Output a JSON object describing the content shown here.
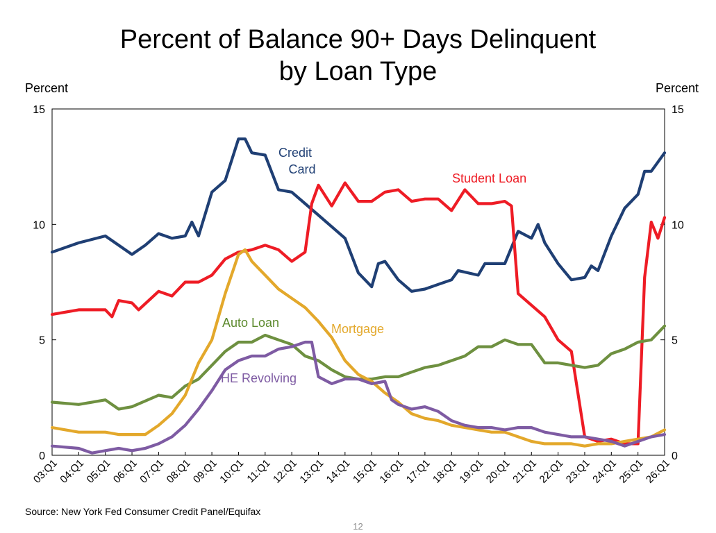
{
  "page": {
    "source": "Source: New York Fed Consumer Credit Panel/Equifax",
    "page_number": "12"
  },
  "chart_data": {
    "type": "line",
    "title_line1": "Percent of Balance 90+ Days Delinquent",
    "title_line2": "by Loan Type",
    "ylabel_left": "Percent",
    "ylabel_right": "Percent",
    "ylim": [
      0,
      15
    ],
    "yticks": [
      "0",
      "5",
      "10",
      "15"
    ],
    "xlim": [
      "03:Q1",
      "26:Q1"
    ],
    "xtick_labels": [
      "03:Q1",
      "04:Q1",
      "05:Q1",
      "06:Q1",
      "07:Q1",
      "08:Q1",
      "09:Q1",
      "10:Q1",
      "11:Q1",
      "12:Q1",
      "13:Q1",
      "14:Q1",
      "15:Q1",
      "16:Q1",
      "17:Q1",
      "18:Q1",
      "19:Q1",
      "20:Q1",
      "21:Q1",
      "22:Q1",
      "23:Q1",
      "24:Q1",
      "25:Q1",
      "26:Q1"
    ],
    "grid": false,
    "series": [
      {
        "name": "Credit Card",
        "label_lines": [
          "Credit",
          "Card"
        ],
        "color": "#1f3f74",
        "label_color": "#1f3f74",
        "points": [
          [
            "03:Q1",
            8.8
          ],
          [
            "04:Q1",
            9.2
          ],
          [
            "05:Q1",
            9.5
          ],
          [
            "06:Q1",
            8.7
          ],
          [
            "06:Q3",
            9.1
          ],
          [
            "07:Q1",
            9.6
          ],
          [
            "07:Q3",
            9.4
          ],
          [
            "08:Q1",
            9.5
          ],
          [
            "08:Q2",
            10.1
          ],
          [
            "08:Q3",
            9.5
          ],
          [
            "09:Q1",
            11.4
          ],
          [
            "09:Q3",
            11.9
          ],
          [
            "10:Q1",
            13.7
          ],
          [
            "10:Q2",
            13.7
          ],
          [
            "10:Q3",
            13.1
          ],
          [
            "11:Q1",
            13.0
          ],
          [
            "11:Q3",
            11.5
          ],
          [
            "12:Q1",
            11.4
          ],
          [
            "12:Q3",
            10.9
          ],
          [
            "13:Q1",
            10.4
          ],
          [
            "13:Q3",
            9.9
          ],
          [
            "14:Q1",
            9.4
          ],
          [
            "14:Q3",
            7.9
          ],
          [
            "15:Q1",
            7.3
          ],
          [
            "15:Q2",
            8.3
          ],
          [
            "15:Q3",
            8.4
          ],
          [
            "16:Q1",
            7.6
          ],
          [
            "16:Q3",
            7.1
          ],
          [
            "17:Q1",
            7.2
          ],
          [
            "17:Q3",
            7.4
          ],
          [
            "18:Q1",
            7.6
          ],
          [
            "18:Q2",
            8.0
          ],
          [
            "19:Q1",
            7.8
          ],
          [
            "19:Q2",
            8.3
          ],
          [
            "20:Q1",
            8.3
          ],
          [
            "20:Q3",
            9.7
          ],
          [
            "21:Q1",
            9.4
          ],
          [
            "21:Q2",
            10.0
          ],
          [
            "21:Q3",
            9.2
          ],
          [
            "22:Q1",
            8.3
          ],
          [
            "22:Q3",
            7.6
          ],
          [
            "23:Q1",
            7.7
          ],
          [
            "23:Q2",
            8.2
          ],
          [
            "23:Q3",
            8.0
          ],
          [
            "24:Q1",
            9.5
          ],
          [
            "24:Q3",
            10.7
          ],
          [
            "25:Q1",
            11.3
          ],
          [
            "25:Q2",
            12.3
          ],
          [
            "25:Q3",
            12.3
          ],
          [
            "26:Q1",
            13.1
          ]
        ]
      },
      {
        "name": "Student Loan",
        "label_lines": [
          "Student Loan"
        ],
        "color": "#ee1c25",
        "label_color": "#ee1c25",
        "points": [
          [
            "03:Q1",
            6.1
          ],
          [
            "04:Q1",
            6.3
          ],
          [
            "05:Q1",
            6.3
          ],
          [
            "05:Q2",
            6.0
          ],
          [
            "05:Q3",
            6.7
          ],
          [
            "06:Q1",
            6.6
          ],
          [
            "06:Q2",
            6.3
          ],
          [
            "07:Q1",
            7.1
          ],
          [
            "07:Q3",
            6.9
          ],
          [
            "08:Q1",
            7.5
          ],
          [
            "08:Q3",
            7.5
          ],
          [
            "09:Q1",
            7.8
          ],
          [
            "09:Q3",
            8.5
          ],
          [
            "10:Q1",
            8.8
          ],
          [
            "10:Q3",
            8.9
          ],
          [
            "11:Q1",
            9.1
          ],
          [
            "11:Q3",
            8.9
          ],
          [
            "12:Q1",
            8.4
          ],
          [
            "12:Q3",
            8.8
          ],
          [
            "12:Q4",
            10.9
          ],
          [
            "13:Q1",
            11.7
          ],
          [
            "13:Q3",
            10.8
          ],
          [
            "14:Q1",
            11.8
          ],
          [
            "14:Q3",
            11.0
          ],
          [
            "15:Q1",
            11.0
          ],
          [
            "15:Q3",
            11.4
          ],
          [
            "16:Q1",
            11.5
          ],
          [
            "16:Q3",
            11.0
          ],
          [
            "17:Q1",
            11.1
          ],
          [
            "17:Q3",
            11.1
          ],
          [
            "18:Q1",
            10.6
          ],
          [
            "18:Q3",
            11.5
          ],
          [
            "19:Q1",
            10.9
          ],
          [
            "19:Q3",
            10.9
          ],
          [
            "20:Q1",
            11.0
          ],
          [
            "20:Q2",
            10.8
          ],
          [
            "20:Q3",
            7.0
          ],
          [
            "21:Q1",
            6.5
          ],
          [
            "21:Q3",
            6.0
          ],
          [
            "22:Q1",
            5.0
          ],
          [
            "22:Q3",
            4.5
          ],
          [
            "23:Q1",
            0.8
          ],
          [
            "23:Q3",
            0.6
          ],
          [
            "24:Q1",
            0.7
          ],
          [
            "24:Q3",
            0.5
          ],
          [
            "25:Q1",
            0.5
          ],
          [
            "25:Q2",
            7.7
          ],
          [
            "25:Q3",
            10.1
          ],
          [
            "25:Q4",
            9.4
          ],
          [
            "26:Q1",
            10.3
          ]
        ]
      },
      {
        "name": "Auto Loan",
        "label_lines": [
          "Auto Loan"
        ],
        "color": "#6e9040",
        "label_color": "#5d8a2e",
        "points": [
          [
            "03:Q1",
            2.3
          ],
          [
            "04:Q1",
            2.2
          ],
          [
            "05:Q1",
            2.4
          ],
          [
            "05:Q3",
            2.0
          ],
          [
            "06:Q1",
            2.1
          ],
          [
            "07:Q1",
            2.6
          ],
          [
            "07:Q3",
            2.5
          ],
          [
            "08:Q1",
            3.0
          ],
          [
            "08:Q3",
            3.3
          ],
          [
            "09:Q1",
            3.9
          ],
          [
            "09:Q3",
            4.5
          ],
          [
            "10:Q1",
            4.9
          ],
          [
            "10:Q3",
            4.9
          ],
          [
            "11:Q1",
            5.2
          ],
          [
            "11:Q3",
            5.0
          ],
          [
            "12:Q1",
            4.8
          ],
          [
            "12:Q3",
            4.3
          ],
          [
            "13:Q1",
            4.1
          ],
          [
            "13:Q3",
            3.7
          ],
          [
            "14:Q1",
            3.4
          ],
          [
            "14:Q3",
            3.3
          ],
          [
            "15:Q1",
            3.3
          ],
          [
            "15:Q3",
            3.4
          ],
          [
            "16:Q1",
            3.4
          ],
          [
            "16:Q3",
            3.6
          ],
          [
            "17:Q1",
            3.8
          ],
          [
            "17:Q3",
            3.9
          ],
          [
            "18:Q1",
            4.1
          ],
          [
            "18:Q3",
            4.3
          ],
          [
            "19:Q1",
            4.7
          ],
          [
            "19:Q3",
            4.7
          ],
          [
            "20:Q1",
            5.0
          ],
          [
            "20:Q3",
            4.8
          ],
          [
            "21:Q1",
            4.8
          ],
          [
            "21:Q3",
            4.0
          ],
          [
            "22:Q1",
            4.0
          ],
          [
            "22:Q3",
            3.9
          ],
          [
            "23:Q1",
            3.8
          ],
          [
            "23:Q3",
            3.9
          ],
          [
            "24:Q1",
            4.4
          ],
          [
            "24:Q3",
            4.6
          ],
          [
            "25:Q1",
            4.9
          ],
          [
            "25:Q3",
            5.0
          ],
          [
            "26:Q1",
            5.6
          ]
        ]
      },
      {
        "name": "Mortgage",
        "label_lines": [
          "Mortgage"
        ],
        "color": "#e3a82b",
        "label_color": "#e3a82b",
        "points": [
          [
            "03:Q1",
            1.2
          ],
          [
            "04:Q1",
            1.0
          ],
          [
            "05:Q1",
            1.0
          ],
          [
            "05:Q3",
            0.9
          ],
          [
            "06:Q1",
            0.9
          ],
          [
            "06:Q3",
            0.9
          ],
          [
            "07:Q1",
            1.3
          ],
          [
            "07:Q3",
            1.8
          ],
          [
            "08:Q1",
            2.6
          ],
          [
            "08:Q3",
            4.0
          ],
          [
            "09:Q1",
            5.0
          ],
          [
            "09:Q3",
            7.0
          ],
          [
            "10:Q1",
            8.7
          ],
          [
            "10:Q2",
            8.9
          ],
          [
            "10:Q3",
            8.4
          ],
          [
            "11:Q1",
            7.8
          ],
          [
            "11:Q3",
            7.2
          ],
          [
            "12:Q1",
            6.8
          ],
          [
            "12:Q3",
            6.4
          ],
          [
            "13:Q1",
            5.8
          ],
          [
            "13:Q3",
            5.1
          ],
          [
            "14:Q1",
            4.1
          ],
          [
            "14:Q3",
            3.5
          ],
          [
            "15:Q1",
            3.2
          ],
          [
            "15:Q3",
            2.7
          ],
          [
            "16:Q1",
            2.3
          ],
          [
            "16:Q3",
            1.8
          ],
          [
            "17:Q1",
            1.6
          ],
          [
            "17:Q3",
            1.5
          ],
          [
            "18:Q1",
            1.3
          ],
          [
            "18:Q3",
            1.2
          ],
          [
            "19:Q1",
            1.1
          ],
          [
            "19:Q3",
            1.0
          ],
          [
            "20:Q1",
            1.0
          ],
          [
            "20:Q3",
            0.8
          ],
          [
            "21:Q1",
            0.6
          ],
          [
            "21:Q3",
            0.5
          ],
          [
            "22:Q1",
            0.5
          ],
          [
            "22:Q3",
            0.5
          ],
          [
            "23:Q1",
            0.4
          ],
          [
            "23:Q3",
            0.5
          ],
          [
            "24:Q1",
            0.5
          ],
          [
            "24:Q3",
            0.6
          ],
          [
            "25:Q1",
            0.7
          ],
          [
            "25:Q3",
            0.8
          ],
          [
            "26:Q1",
            1.1
          ]
        ]
      },
      {
        "name": "HE Revolving",
        "label_lines": [
          "HE Revolving"
        ],
        "color": "#7e5ba3",
        "label_color": "#7e5ba3",
        "points": [
          [
            "03:Q1",
            0.4
          ],
          [
            "04:Q1",
            0.3
          ],
          [
            "04:Q3",
            0.1
          ],
          [
            "05:Q1",
            0.2
          ],
          [
            "05:Q3",
            0.3
          ],
          [
            "06:Q1",
            0.2
          ],
          [
            "06:Q3",
            0.3
          ],
          [
            "07:Q1",
            0.5
          ],
          [
            "07:Q3",
            0.8
          ],
          [
            "08:Q1",
            1.3
          ],
          [
            "08:Q3",
            2.0
          ],
          [
            "09:Q1",
            2.8
          ],
          [
            "09:Q3",
            3.7
          ],
          [
            "10:Q1",
            4.1
          ],
          [
            "10:Q3",
            4.3
          ],
          [
            "11:Q1",
            4.3
          ],
          [
            "11:Q3",
            4.6
          ],
          [
            "12:Q1",
            4.7
          ],
          [
            "12:Q3",
            4.9
          ],
          [
            "12:Q4",
            4.9
          ],
          [
            "13:Q1",
            3.4
          ],
          [
            "13:Q3",
            3.1
          ],
          [
            "14:Q1",
            3.3
          ],
          [
            "14:Q3",
            3.3
          ],
          [
            "15:Q1",
            3.1
          ],
          [
            "15:Q3",
            3.2
          ],
          [
            "15:Q4",
            2.4
          ],
          [
            "16:Q1",
            2.2
          ],
          [
            "16:Q3",
            2.0
          ],
          [
            "17:Q1",
            2.1
          ],
          [
            "17:Q3",
            1.9
          ],
          [
            "18:Q1",
            1.5
          ],
          [
            "18:Q3",
            1.3
          ],
          [
            "19:Q1",
            1.2
          ],
          [
            "19:Q3",
            1.2
          ],
          [
            "20:Q1",
            1.1
          ],
          [
            "20:Q3",
            1.2
          ],
          [
            "21:Q1",
            1.2
          ],
          [
            "21:Q3",
            1.0
          ],
          [
            "22:Q1",
            0.9
          ],
          [
            "22:Q3",
            0.8
          ],
          [
            "23:Q1",
            0.8
          ],
          [
            "23:Q3",
            0.7
          ],
          [
            "24:Q1",
            0.6
          ],
          [
            "24:Q3",
            0.4
          ],
          [
            "25:Q1",
            0.6
          ],
          [
            "25:Q3",
            0.8
          ],
          [
            "26:Q1",
            0.9
          ]
        ]
      }
    ]
  }
}
